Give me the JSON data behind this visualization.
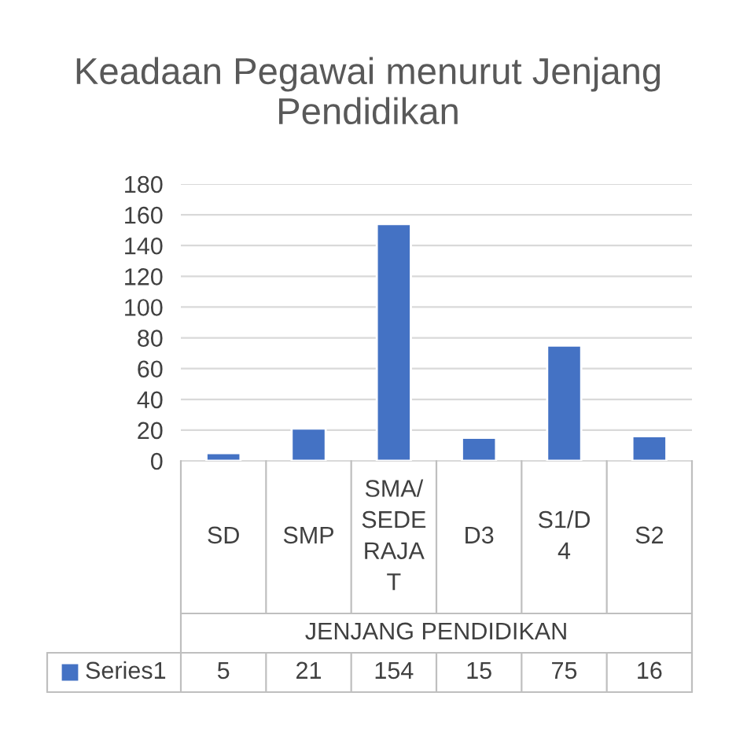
{
  "chart_data": {
    "type": "bar",
    "title": "Keadaan Pegawai menurut Jenjang Pendidikan",
    "xlabel": "JENJANG PENDIDIKAN",
    "categories": [
      "SD",
      "SMP",
      "SMA/SEDERAJAT",
      "D3",
      "S1/D4",
      "S2"
    ],
    "series": [
      {
        "name": "Series1",
        "color": "#4472c4",
        "values": [
          5,
          21,
          154,
          15,
          75,
          16
        ]
      }
    ],
    "ylim": [
      0,
      180
    ],
    "yticks": [
      0,
      20,
      40,
      60,
      80,
      100,
      120,
      140,
      160,
      180
    ],
    "grid": "y",
    "data_labels": true
  }
}
